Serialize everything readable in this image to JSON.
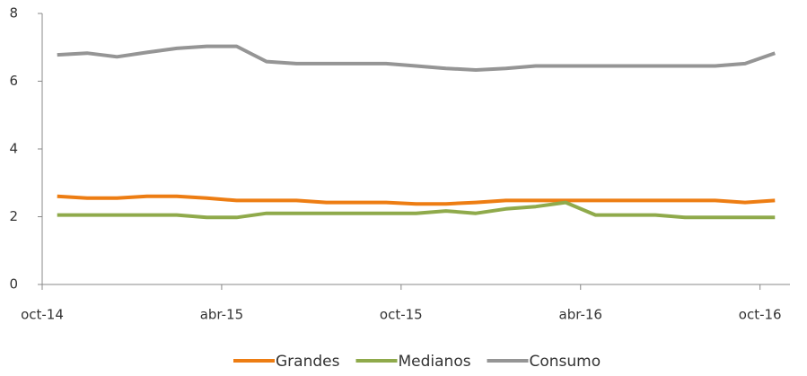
{
  "chart_data": {
    "type": "line",
    "categories": [
      "oct-14",
      null,
      null,
      null,
      null,
      null,
      "abr-15",
      null,
      null,
      null,
      null,
      null,
      "oct-15",
      null,
      null,
      null,
      null,
      null,
      "abr-16",
      null,
      null,
      null,
      null,
      null,
      "oct-16"
    ],
    "series": [
      {
        "name": "Grandes",
        "color": "#ED7D13",
        "values": [
          2.6,
          2.55,
          2.55,
          2.6,
          2.6,
          2.55,
          2.48,
          2.48,
          2.48,
          2.42,
          2.42,
          2.42,
          2.38,
          2.38,
          2.42,
          2.48,
          2.48,
          2.48,
          2.48,
          2.48,
          2.48,
          2.48,
          2.48,
          2.42,
          2.48
        ]
      },
      {
        "name": "Medianos",
        "color": "#8FAA4B",
        "values": [
          2.05,
          2.05,
          2.05,
          2.05,
          2.05,
          1.98,
          1.98,
          2.1,
          2.1,
          2.1,
          2.1,
          2.1,
          2.1,
          2.17,
          2.1,
          2.23,
          2.3,
          2.42,
          2.05,
          2.05,
          2.05,
          1.98,
          1.98,
          1.98,
          1.98
        ]
      },
      {
        "name": "Consumo",
        "color": "#959595",
        "values": [
          6.78,
          6.83,
          6.72,
          6.85,
          6.97,
          7.03,
          7.03,
          6.58,
          6.52,
          6.52,
          6.52,
          6.52,
          6.45,
          6.38,
          6.33,
          6.38,
          6.45,
          6.45,
          6.45,
          6.45,
          6.45,
          6.45,
          6.45,
          6.52,
          6.83
        ]
      }
    ],
    "ylim": [
      0,
      8
    ],
    "yticks": [
      0,
      2,
      4,
      6,
      8
    ],
    "grid": false,
    "legend": "bottom"
  }
}
